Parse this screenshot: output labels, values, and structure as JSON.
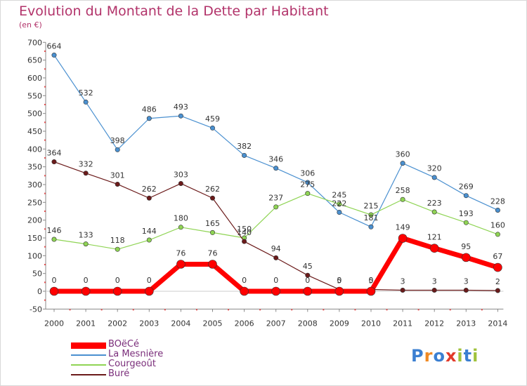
{
  "title": "Evolution du Montant de la Dette par Habitant",
  "unit": "(en €)",
  "logo": {
    "text": "Proxiti",
    "colors": [
      "#3b7fd1",
      "#f08a24",
      "#3b7fd1",
      "#e23a2a",
      "#a0c23c",
      "#3b7fd1",
      "#a0c23c"
    ]
  },
  "chart_data": {
    "type": "line",
    "title": "Evolution du Montant de la Dette par Habitant",
    "ylabel": "(en €)",
    "xlabel": "",
    "ylim": [
      -50,
      700
    ],
    "yticks": [
      -50,
      0,
      50,
      100,
      150,
      200,
      250,
      300,
      350,
      400,
      450,
      500,
      550,
      600,
      650,
      700
    ],
    "x": [
      "2000",
      "2001",
      "2002",
      "2003",
      "2004",
      "2005",
      "2006",
      "2007",
      "2008",
      "2009",
      "2010",
      "2011",
      "2012",
      "2013",
      "2014"
    ],
    "legend_position": "bottom-left",
    "grid": false,
    "series": [
      {
        "name": "La Mesnière",
        "color": "#4a90d0",
        "values": [
          664,
          532,
          398,
          486,
          493,
          459,
          382,
          346,
          306,
          222,
          181,
          360,
          320,
          269,
          228
        ]
      },
      {
        "name": "Courgeoût",
        "color": "#8fd454",
        "values": [
          146,
          133,
          118,
          144,
          180,
          165,
          150,
          237,
          275,
          245,
          215,
          258,
          223,
          193,
          160
        ]
      },
      {
        "name": "Buré",
        "color": "#6b1a1a",
        "values": [
          364,
          332,
          301,
          262,
          303,
          262,
          140,
          94,
          45,
          5,
          5,
          3,
          3,
          3,
          2
        ]
      },
      {
        "name": "BOëCé",
        "color": "#ff0000",
        "values": [
          0,
          0,
          0,
          0,
          76,
          76,
          0,
          0,
          0,
          0,
          0,
          149,
          121,
          95,
          67
        ]
      }
    ],
    "legend_order": [
      "BOëCé",
      "La Mesnière",
      "Courgeoût",
      "Buré"
    ]
  }
}
